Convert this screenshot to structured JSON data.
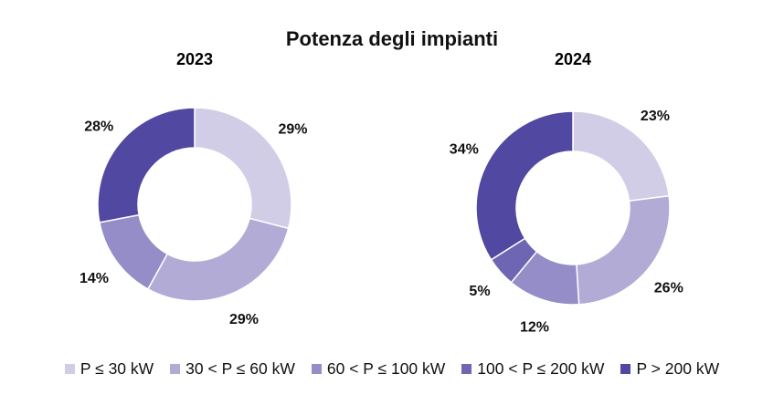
{
  "title": "Potenza degli impianti",
  "legend": [
    {
      "label": "P ≤ 30 kW",
      "color": "#d1cde6"
    },
    {
      "label": "30 < P ≤ 60 kW",
      "color": "#b1abd6"
    },
    {
      "label": "60 < P ≤ 100 kW",
      "color": "#958dc7"
    },
    {
      "label": "100 < P ≤ 200 kW",
      "color": "#6e66b3"
    },
    {
      "label": "P > 200 kW",
      "color": "#5148a2"
    }
  ],
  "chart_data": [
    {
      "type": "pie",
      "subtitle": "2023",
      "categories": [
        "P ≤ 30 kW",
        "30 < P ≤ 60 kW",
        "60 < P ≤ 100 kW",
        "100 < P ≤ 200 kW",
        "P > 200 kW"
      ],
      "values": [
        29,
        29,
        14,
        0,
        28
      ],
      "labels": [
        "29%",
        "29%",
        "14%",
        "",
        "28%"
      ]
    },
    {
      "type": "pie",
      "subtitle": "2024",
      "categories": [
        "P ≤ 30 kW",
        "30 < P ≤ 60 kW",
        "60 < P ≤ 100 kW",
        "100 < P ≤ 200 kW",
        "P > 200 kW"
      ],
      "values": [
        23,
        26,
        12,
        5,
        34
      ],
      "labels": [
        "23%",
        "26%",
        "12%",
        "5%",
        "34%"
      ]
    }
  ]
}
